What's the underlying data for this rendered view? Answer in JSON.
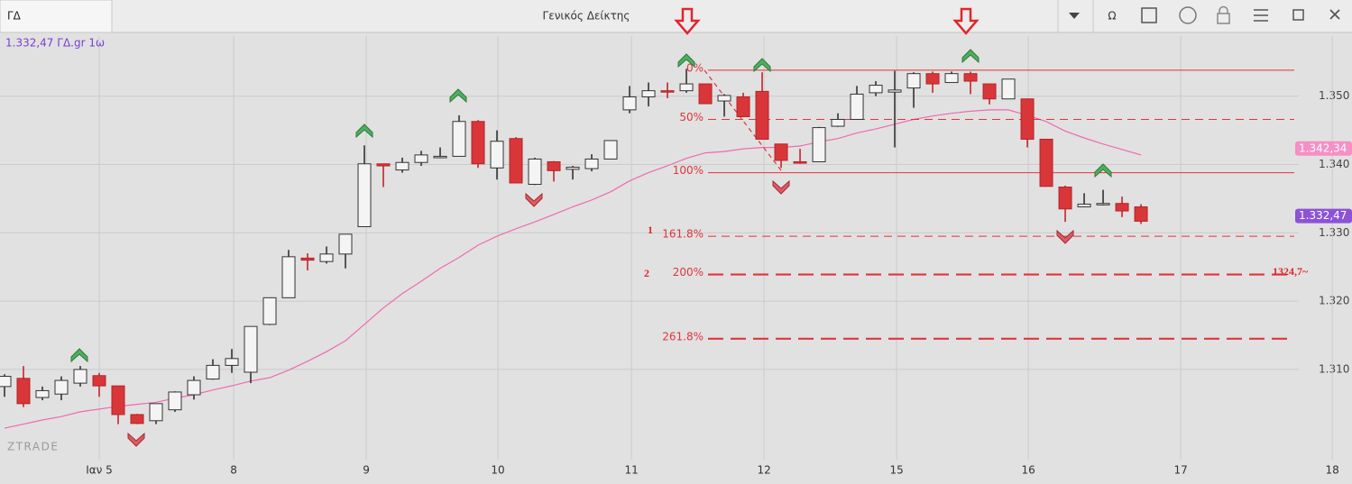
{
  "header": {
    "symbol": "ΓΔ",
    "title": "Γενικός Δείκτης",
    "toolbar": [
      "Ω"
    ]
  },
  "info": "1.332,47 ΓΔ.gr 1ω",
  "watermark": "ZTRADE",
  "chart_data": {
    "type": "candlestick",
    "ylim": [
      1296.8,
      1358.8
    ],
    "yticks": [
      {
        "value": 1310,
        "label": "1.310"
      },
      {
        "value": 1320,
        "label": "1.320"
      },
      {
        "value": 1330,
        "label": "1.330"
      },
      {
        "value": 1340,
        "label": "1.340"
      },
      {
        "value": 1350,
        "label": "1.350"
      }
    ],
    "xlim": [
      -0.238,
      71.14
    ],
    "xticks": [
      {
        "value": 5,
        "label": "Ιαν 5"
      },
      {
        "value": 12.1,
        "label": "8"
      },
      {
        "value": 19.1,
        "label": "9"
      },
      {
        "value": 26.05,
        "label": "10"
      },
      {
        "value": 33.1,
        "label": "11"
      },
      {
        "value": 40.1,
        "label": "12"
      },
      {
        "value": 47.1,
        "label": "15"
      },
      {
        "value": 54.05,
        "label": "16"
      },
      {
        "value": 62.1,
        "label": "17"
      },
      {
        "value": 70.1,
        "label": "18"
      }
    ],
    "grid": true,
    "up_color": "#f4f4f4",
    "down_color": "#d9363a",
    "ma_color": "#f06ab0",
    "fib_color": "#e0353b",
    "candles": {
      "open": [
        1307.5,
        1308.7,
        1305.9,
        1306.4,
        1308,
        1309.1,
        1307.6,
        1303.4,
        1302.5,
        1304.1,
        1306.3,
        1308.6,
        1310.6,
        1309.6,
        1316.6,
        1320.5,
        1326.3,
        1325.8,
        1326.9,
        1330.9,
        1340.1,
        1339.2,
        1340.3,
        1341,
        1341.2,
        1346.3,
        1339.5,
        1343.8,
        1337.1,
        1340.4,
        1339.3,
        1339.4,
        1340.8,
        1348,
        1349.9,
        1350.8,
        1350.8,
        1351.8,
        1349.3,
        1349.9,
        1350.7,
        1343,
        1340.4,
        1340.4,
        1345.6,
        1346.6,
        1350.5,
        1350.6,
        1351.2,
        1353.3,
        1352,
        1353.3,
        1351.8,
        1349.6,
        1349.6,
        1343.7,
        1336.7,
        1333.8,
        1334.2,
        1334.3,
        1333.8
      ],
      "high": [
        1309.3,
        1310.5,
        1307.5,
        1309,
        1310.5,
        1309.5,
        1307.6,
        1303.5,
        1305,
        1306.8,
        1309,
        1311.5,
        1313,
        1316.3,
        1320.5,
        1327.5,
        1327,
        1328,
        1329.8,
        1342.8,
        1340,
        1341,
        1342,
        1342.5,
        1347.2,
        1346.5,
        1345,
        1344,
        1341,
        1340.5,
        1339.8,
        1341.5,
        1343.5,
        1351.5,
        1352,
        1352,
        1354,
        1351.8,
        1350.3,
        1350.5,
        1353.5,
        1343,
        1342.3,
        1345.5,
        1347.5,
        1351.5,
        1352.2,
        1353.7,
        1353.5,
        1353.6,
        1353.6,
        1353.6,
        1351.8,
        1352.5,
        1349.6,
        1343.7,
        1336.9,
        1335.8,
        1336.3,
        1335.3,
        1334.2
      ],
      "low": [
        1306,
        1304.5,
        1305.5,
        1305.5,
        1307.5,
        1306,
        1302,
        1302,
        1302,
        1303.8,
        1305.6,
        1308.5,
        1309.5,
        1308,
        1316.5,
        1320.5,
        1324.5,
        1325.5,
        1324.8,
        1330.9,
        1336.7,
        1338.8,
        1339.8,
        1340.9,
        1341.2,
        1339.5,
        1337.8,
        1337.3,
        1337,
        1337.5,
        1337.8,
        1339,
        1340.8,
        1347.5,
        1348.5,
        1349.7,
        1350.5,
        1348.9,
        1347,
        1347,
        1343.7,
        1339.5,
        1340.1,
        1340.4,
        1345.5,
        1346.6,
        1350,
        1342.5,
        1348.3,
        1350.5,
        1352,
        1350.3,
        1348.8,
        1349.6,
        1342.5,
        1336.8,
        1331.6,
        1333.8,
        1334,
        1332.3,
        1331.3
      ],
      "close": [
        1309,
        1305,
        1306.9,
        1308.4,
        1310,
        1307.6,
        1303.4,
        1302.1,
        1305,
        1306.7,
        1308.4,
        1310.6,
        1311.6,
        1316.3,
        1320.5,
        1326.5,
        1326,
        1326.9,
        1329.8,
        1340.1,
        1339.8,
        1340.3,
        1341.4,
        1341.2,
        1346.3,
        1340.1,
        1343.4,
        1337.3,
        1340.8,
        1339.1,
        1339.6,
        1340.8,
        1343.5,
        1349.9,
        1350.8,
        1350.6,
        1351.8,
        1348.9,
        1350.1,
        1347,
        1343.7,
        1340.6,
        1340.3,
        1345.4,
        1346.6,
        1350.3,
        1351.6,
        1350.9,
        1353.3,
        1351.8,
        1353.3,
        1352.2,
        1349.6,
        1352.5,
        1343.7,
        1336.8,
        1333.5,
        1334.2,
        1334.3,
        1333.2,
        1331.7
      ]
    },
    "ma": [
      1301.4,
      1302,
      1302.6,
      1303.1,
      1303.8,
      1304.2,
      1304.6,
      1304.9,
      1305.2,
      1305.8,
      1306.3,
      1307,
      1307.6,
      1308.3,
      1308.8,
      1309.9,
      1311.2,
      1312.6,
      1314.2,
      1316.6,
      1319,
      1321.1,
      1322.9,
      1324.8,
      1326.4,
      1328.2,
      1329.5,
      1330.6,
      1331.6,
      1332.7,
      1333.8,
      1334.8,
      1336,
      1337.6,
      1338.8,
      1339.8,
      1340.9,
      1341.7,
      1341.9,
      1342.3,
      1342.5,
      1342.5,
      1342.7,
      1343.3,
      1343.8,
      1344.6,
      1345.2,
      1345.9,
      1346.6,
      1347.1,
      1347.5,
      1347.8,
      1348,
      1348,
      1347.2,
      1346.3,
      1344.9,
      1343.9,
      1343,
      1342.2,
      1341.4
    ],
    "fib_levels": [
      {
        "value": 1353.8,
        "label": "0%",
        "style": "solid"
      },
      {
        "value": 1346.6,
        "label": "50%",
        "style": "dashed"
      },
      {
        "value": 1338.8,
        "label": "100%",
        "style": "solid"
      },
      {
        "value": 1329.5,
        "label": "161.8%",
        "style": "dashed"
      },
      {
        "value": 1323.9,
        "label": "200%",
        "style": "bold-dashed"
      },
      {
        "value": 1314.5,
        "label": "261.8%",
        "style": "bold-dashed"
      }
    ],
    "price_labels": [
      {
        "value": 1342.34,
        "label": "1.342,34",
        "color": "#f58fc4"
      },
      {
        "value": 1332.47,
        "label": "1.332,47",
        "color": "#8d52d6"
      }
    ],
    "annotations": [
      "1",
      "2",
      "1324,7~"
    ]
  }
}
